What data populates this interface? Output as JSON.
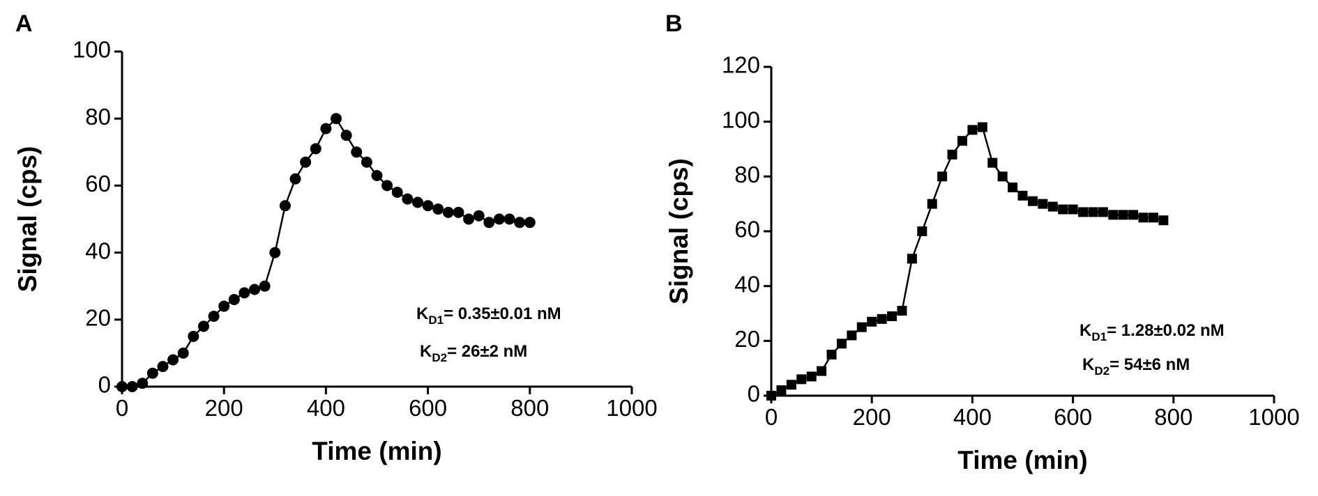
{
  "chart_data": [
    {
      "type": "scatter-line",
      "panel_label": "A",
      "x_label": "Time (min)",
      "y_label": "Signal (cps)",
      "xlim": [
        0,
        1000
      ],
      "xticks": [
        0,
        200,
        400,
        600,
        800,
        1000
      ],
      "ylim": [
        0,
        100
      ],
      "yticks": [
        0,
        20,
        40,
        60,
        80,
        100
      ],
      "marker": "circle",
      "color": "#000000",
      "x": [
        0,
        20,
        40,
        60,
        80,
        100,
        120,
        140,
        160,
        180,
        200,
        220,
        240,
        260,
        280,
        300,
        320,
        340,
        360,
        380,
        400,
        420,
        440,
        460,
        480,
        500,
        520,
        540,
        560,
        580,
        600,
        620,
        640,
        660,
        680,
        700,
        720,
        740,
        760,
        780,
        800
      ],
      "values": [
        0,
        0,
        1,
        4,
        6,
        8,
        10,
        15,
        18,
        21,
        24,
        26,
        28,
        29,
        30,
        40,
        54,
        62,
        67,
        71,
        77,
        80,
        75,
        70,
        67,
        63,
        60,
        58,
        56,
        55,
        54,
        53,
        52,
        52,
        50,
        51,
        49,
        50,
        50,
        49,
        49
      ],
      "annotations": [
        {
          "symbol": "K",
          "subscript": "D1",
          "text": "= 0.35±0.01 nM"
        },
        {
          "symbol": "K",
          "subscript": "D2",
          "text": "= 26±2 nM"
        }
      ]
    },
    {
      "type": "scatter-line",
      "panel_label": "B",
      "x_label": "Time (min)",
      "y_label": "Signal (cps)",
      "xlim": [
        0,
        1000
      ],
      "xticks": [
        0,
        200,
        400,
        600,
        800,
        1000
      ],
      "ylim": [
        0,
        120
      ],
      "yticks": [
        0,
        20,
        40,
        60,
        80,
        100,
        120
      ],
      "marker": "square",
      "color": "#000000",
      "x": [
        0,
        20,
        40,
        60,
        80,
        100,
        120,
        140,
        160,
        180,
        200,
        220,
        240,
        260,
        280,
        300,
        320,
        340,
        360,
        380,
        400,
        420,
        440,
        460,
        480,
        500,
        520,
        540,
        560,
        580,
        600,
        620,
        640,
        660,
        680,
        700,
        720,
        740,
        760,
        780
      ],
      "values": [
        0,
        2,
        4,
        6,
        7,
        9,
        15,
        19,
        22,
        25,
        27,
        28,
        29,
        31,
        50,
        60,
        70,
        80,
        88,
        93,
        97,
        98,
        85,
        80,
        76,
        73,
        71,
        70,
        69,
        68,
        68,
        67,
        67,
        67,
        66,
        66,
        66,
        65,
        65,
        64
      ],
      "annotations": [
        {
          "symbol": "K",
          "subscript": "D1",
          "text": "= 1.28±0.02 nM"
        },
        {
          "symbol": "K",
          "subscript": "D2",
          "text": "= 54±6 nM"
        }
      ]
    }
  ]
}
